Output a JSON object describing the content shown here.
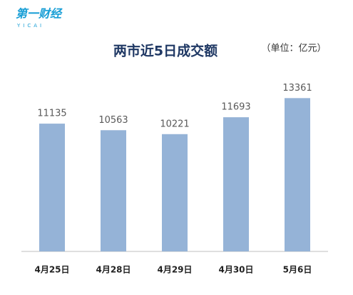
{
  "logo": {
    "name": "第一财经",
    "sub": "YICAI"
  },
  "chart_data": {
    "type": "bar",
    "title": "两市近5日成交额",
    "subtitle": "（单位：亿元）",
    "categories": [
      "4月25日",
      "4月28日",
      "4月29日",
      "4月30日",
      "5月6日"
    ],
    "values": [
      11135,
      10563,
      10221,
      11693,
      13361
    ],
    "color": "#95b3d7",
    "ylim": [
      0,
      15000
    ],
    "value_labels_shown": true
  }
}
